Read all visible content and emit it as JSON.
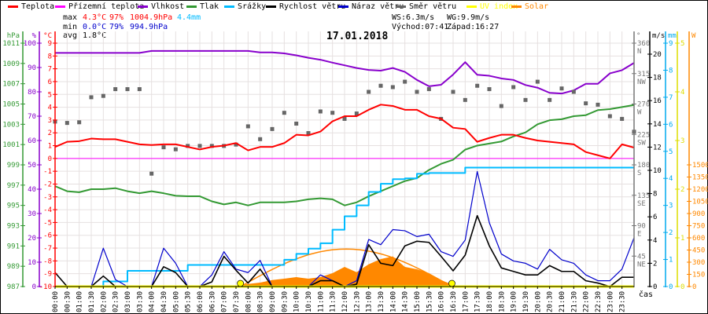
{
  "legend": [
    {
      "label": "Teplota",
      "color": "#ff0000"
    },
    {
      "label": "Přízemní teplota",
      "color": "#ff00ff"
    },
    {
      "label": "Vlhkost",
      "color": "#8800cc"
    },
    {
      "label": "Tlak",
      "color": "#339933"
    },
    {
      "label": "Srážky",
      "color": "#00bbff"
    },
    {
      "label": "Rychlost větru",
      "color": "#000000"
    },
    {
      "label": "Náraz větru",
      "color": "#0000cc"
    },
    {
      "label": "Směr větru",
      "color": "#666666"
    },
    {
      "label": "UV index",
      "color": "#ffff00"
    },
    {
      "label": "Solar",
      "color": "#ff8800"
    }
  ],
  "stats": {
    "max_label": "max",
    "min_label": "min",
    "avg_label": "avg",
    "max_temp": "4.3°C",
    "max_hum": "97%",
    "max_press": "1004.9hPa",
    "max_rain": "4.4mm",
    "min_temp": "0.0°C",
    "min_hum": "79%",
    "min_press": "994.9hPa",
    "avg_temp": "1.8°C",
    "ws": "WS:6.3m/s",
    "wg": "WG:9.9m/s",
    "sunrise": "Východ:07:41",
    "sunset": "Západ:16:27"
  },
  "chart_data": {
    "type": "line",
    "title": "17.01.2018",
    "xlabel": "čas",
    "x_interval_hours": 0.5,
    "x_ticks": [
      "00:00",
      "00:30",
      "01:00",
      "01:30",
      "02:00",
      "02:30",
      "03:00",
      "03:30",
      "04:00",
      "04:30",
      "05:00",
      "05:30",
      "06:00",
      "06:30",
      "07:00",
      "07:30",
      "08:00",
      "08:30",
      "09:00",
      "09:30",
      "10:00",
      "10:30",
      "11:00",
      "11:30",
      "12:00",
      "12:30",
      "13:00",
      "13:30",
      "14:00",
      "14:30",
      "15:00",
      "15:30",
      "16:00",
      "16:30",
      "17:00",
      "17:30",
      "18:00",
      "18:30",
      "19:00",
      "19:30",
      "20:00",
      "20:30",
      "21:00",
      "21:30",
      "22:00",
      "22:30",
      "23:00",
      "23:30"
    ],
    "axes": {
      "pressure": {
        "unit": "hPa",
        "range": [
          987,
          1011
        ],
        "ticks": [
          1011,
          1009,
          1007,
          1005,
          1003,
          1001,
          999,
          997,
          995,
          993,
          991,
          989,
          987
        ]
      },
      "humidity": {
        "unit": "%",
        "range": [
          0,
          100
        ],
        "ticks": [
          100,
          90,
          80,
          70,
          60,
          50,
          40,
          30,
          20,
          10,
          0
        ]
      },
      "temperature": {
        "unit": "°C",
        "range": [
          -10,
          9
        ],
        "ticks": [
          9,
          8,
          7,
          6,
          5,
          4,
          3,
          2,
          1,
          0,
          -1,
          -2,
          -3,
          -4,
          -5,
          -6,
          -7,
          -8,
          -9,
          -10
        ]
      },
      "direction": {
        "unit": "°",
        "range": [
          0,
          360
        ],
        "ticks": [
          360,
          315,
          270,
          225,
          180,
          135,
          90,
          45
        ],
        "compass": [
          "N",
          "NW",
          "W",
          "SW",
          "S",
          "SE",
          "E",
          "NE"
        ]
      },
      "wind": {
        "unit": "m/s",
        "range": [
          0,
          20
        ],
        "ticks": [
          20,
          18,
          16,
          14,
          12,
          10,
          8,
          6,
          4,
          2,
          0
        ]
      },
      "rain": {
        "unit": "mm",
        "range": [
          0,
          9
        ],
        "ticks": [
          9,
          8,
          7,
          6,
          5,
          4,
          3,
          2,
          1,
          0
        ]
      },
      "uv": {
        "unit": "",
        "range": [
          0,
          5
        ],
        "ticks": [
          5,
          4,
          3,
          2,
          1,
          0
        ]
      },
      "solar": {
        "unit": "W",
        "range": [
          0,
          1500
        ],
        "ticks": [
          1500,
          1350,
          1200,
          1050,
          900,
          750,
          600,
          450,
          300,
          150,
          0
        ]
      }
    },
    "series": {
      "temperature": [
        0.9,
        1.3,
        1.35,
        1.55,
        1.5,
        1.5,
        1.3,
        1.1,
        1.05,
        1.1,
        1.1,
        0.9,
        0.7,
        0.9,
        1.0,
        1.2,
        0.63,
        0.9,
        0.9,
        1.2,
        1.85,
        1.8,
        2.1,
        2.9,
        3.3,
        3.3,
        3.8,
        4.2,
        4.1,
        3.8,
        3.8,
        3.3,
        3.1,
        2.4,
        2.3,
        1.3,
        1.6,
        1.85,
        1.85,
        1.6,
        1.4,
        1.3,
        1.2,
        1.1,
        0.5,
        0.25,
        0.0,
        1.1,
        0.85
      ],
      "ground_temperature": [
        0,
        0,
        0,
        0,
        0,
        0,
        0,
        0,
        0,
        0,
        0,
        0,
        0,
        0,
        0,
        0,
        0,
        0,
        0,
        0,
        0,
        0,
        0,
        0,
        0,
        0,
        0,
        0,
        0,
        0,
        0,
        0,
        0,
        0,
        0,
        0,
        0,
        0,
        0,
        0,
        0,
        0,
        0,
        0,
        0,
        0,
        0,
        0,
        0
      ],
      "humidity": [
        96,
        96,
        96,
        96,
        96,
        96,
        96,
        96,
        96.8,
        96.8,
        96.8,
        96.8,
        96.8,
        96.8,
        96.8,
        96.8,
        96.8,
        96.2,
        96.2,
        95.8,
        95,
        94,
        93.2,
        92,
        90.9,
        89.8,
        89,
        88.7,
        89.8,
        88.2,
        84.9,
        82.3,
        82.9,
        87.1,
        92.2,
        87,
        86.6,
        85.5,
        84.9,
        82.8,
        81.7,
        79.6,
        79.3,
        80.6,
        83.3,
        83.3,
        87.6,
        88.9,
        91.9
      ],
      "pressure": [
        996.9,
        996.4,
        996.3,
        996.6,
        996.6,
        996.7,
        996.4,
        996.2,
        996.4,
        996.2,
        995.95,
        995.9,
        995.9,
        995.4,
        995.1,
        995.3,
        995.0,
        995.3,
        995.3,
        995.3,
        995.4,
        995.6,
        995.7,
        995.6,
        995.0,
        995.3,
        995.9,
        996.4,
        996.9,
        997.4,
        997.7,
        998.5,
        999.1,
        999.5,
        1000.5,
        1000.9,
        1001.1,
        1001.3,
        1001.8,
        1002.2,
        1003.0,
        1003.4,
        1003.5,
        1003.8,
        1003.9,
        1004.4,
        1004.5,
        1004.7,
        1004.9
      ],
      "rain": [
        0,
        0,
        0,
        0,
        0.19,
        0.19,
        0.58,
        0.58,
        0.58,
        0.58,
        0.58,
        0.8,
        0.8,
        0.8,
        0.8,
        0.8,
        0.8,
        0.8,
        0.8,
        0.99,
        1.21,
        1.4,
        1.6,
        2.1,
        2.6,
        3.0,
        3.5,
        3.8,
        3.97,
        4.0,
        4.17,
        4.2,
        4.2,
        4.2,
        4.4,
        4.4,
        4.4,
        4.4,
        4.4,
        4.4,
        4.4,
        4.4,
        4.4,
        4.4,
        4.4,
        4.4,
        4.4,
        4.4,
        4.4
      ],
      "wind_speed": [
        1.2,
        0,
        0,
        0,
        0.9,
        0,
        0,
        0,
        0,
        1.7,
        1.2,
        0,
        0,
        0.4,
        2.6,
        1.4,
        0.3,
        1.5,
        0,
        0,
        0,
        0,
        0.5,
        0.5,
        0,
        0.2,
        3.6,
        2.0,
        1.8,
        3.5,
        3.9,
        3.8,
        2.6,
        1.35,
        2.7,
        6.1,
        3.5,
        1.6,
        1.3,
        1.0,
        1.0,
        1.8,
        1.3,
        1.3,
        0.5,
        0.3,
        0,
        0.8,
        0.8
      ],
      "wind_gust": [
        0,
        0,
        0,
        0,
        3.3,
        0.6,
        0,
        0,
        0,
        3.3,
        2.0,
        0,
        0,
        1.0,
        3.0,
        1.5,
        1.2,
        2.25,
        0,
        0,
        0,
        0,
        1.0,
        0.5,
        0,
        0.5,
        4.05,
        3.6,
        4.9,
        4.8,
        4.3,
        4.5,
        3.0,
        2.6,
        4.0,
        9.9,
        5.5,
        2.8,
        2.2,
        2.0,
        1.5,
        3.2,
        2.3,
        2.0,
        1.0,
        0.5,
        0.5,
        1.5,
        4.2
      ],
      "wind_direction": [
        244,
        242,
        243,
        280,
        282,
        292,
        292,
        292,
        167,
        206,
        203,
        208,
        208,
        208,
        208,
        210,
        237,
        218,
        233,
        257,
        241,
        227,
        259,
        257,
        248,
        256,
        288,
        297,
        295,
        303,
        288,
        292,
        248,
        288,
        276,
        297,
        292,
        267,
        295,
        276,
        303,
        276,
        293,
        288,
        271,
        269,
        252,
        248,
        229
      ],
      "uv_index": [
        0,
        0,
        0,
        0,
        0,
        0,
        0,
        0,
        0,
        0,
        0,
        0,
        0,
        0,
        0,
        0,
        0,
        0,
        0,
        0,
        0,
        0,
        0,
        0,
        0,
        0,
        0,
        0,
        0,
        0,
        0,
        0,
        0,
        0,
        0,
        0,
        0,
        0,
        0,
        0,
        0,
        0,
        0,
        0,
        0,
        0,
        0,
        0,
        0
      ],
      "solar": [
        0,
        0,
        0,
        0,
        0,
        0,
        0,
        0,
        0,
        0,
        0,
        0,
        0,
        0,
        0,
        10,
        32,
        48,
        80,
        97,
        116,
        97,
        116,
        164,
        242,
        177,
        274,
        339,
        371,
        242,
        213,
        164,
        80,
        19,
        0,
        0,
        0,
        0,
        0,
        0,
        0,
        0,
        0,
        0,
        0,
        0,
        0,
        0,
        0
      ],
      "solar_theoretical_max": 462,
      "sunrise_hours": 7.683,
      "sunset_hours": 16.45
    }
  }
}
